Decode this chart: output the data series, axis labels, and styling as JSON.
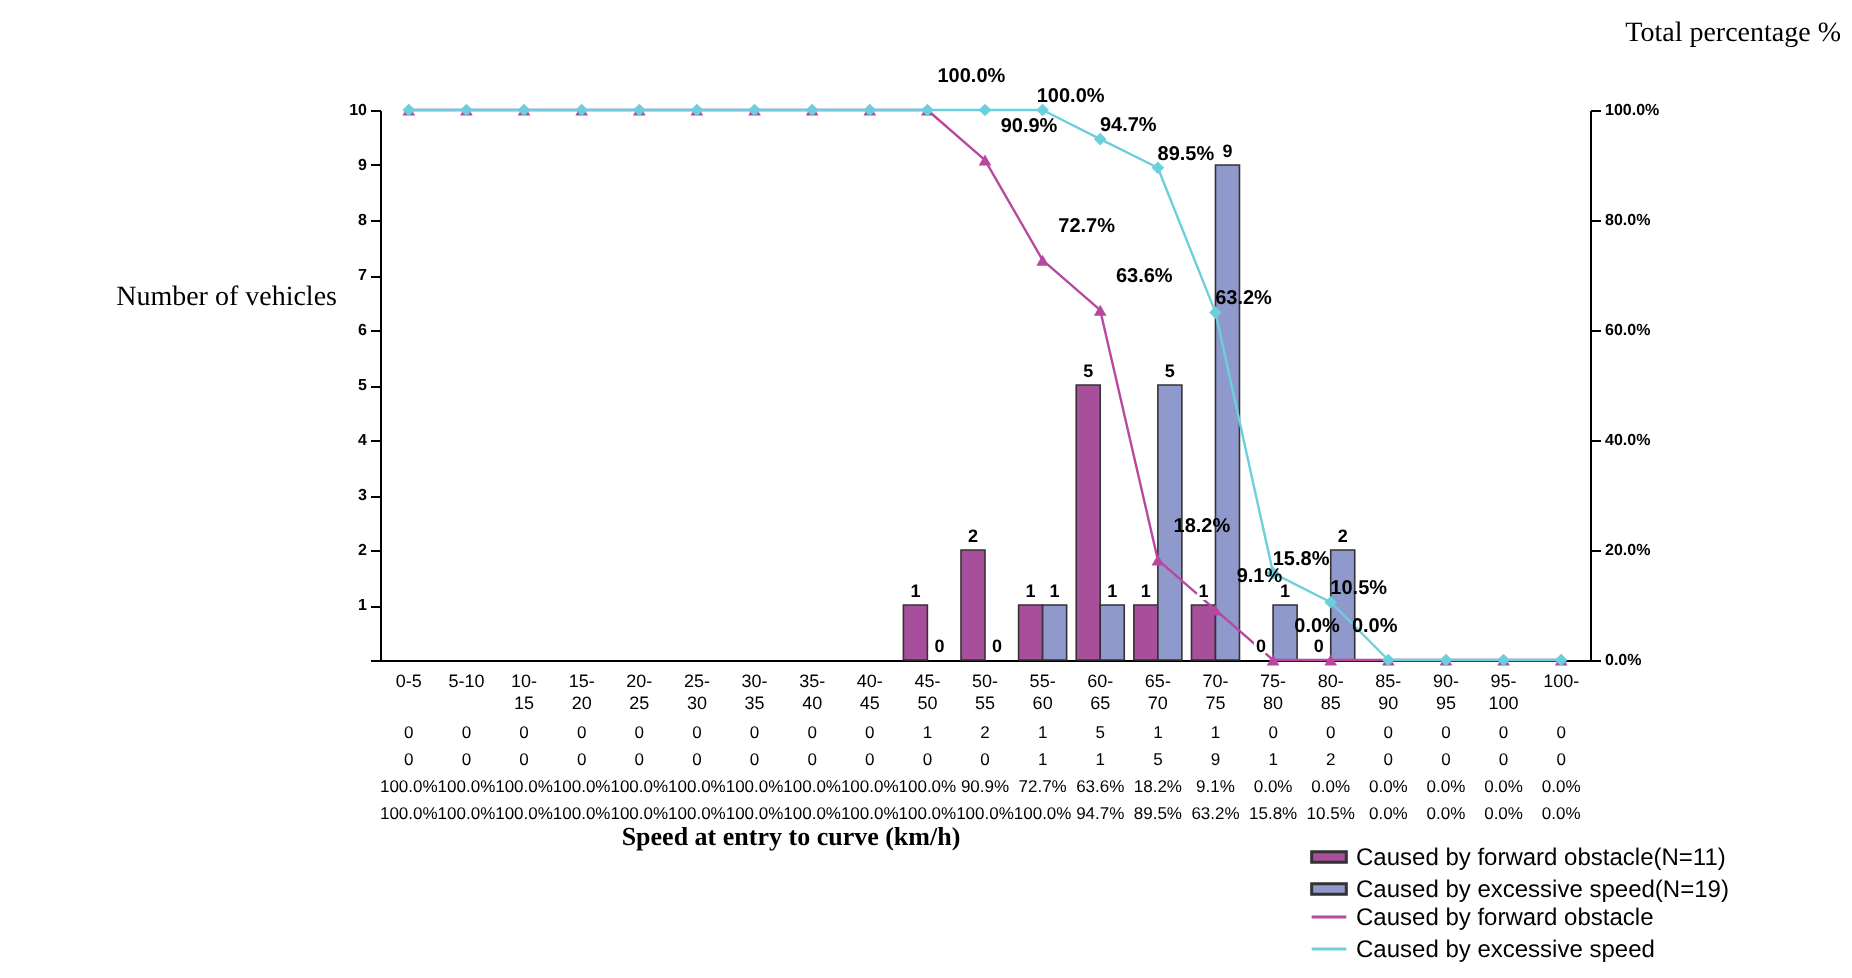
{
  "chart_data": {
    "type": "bar",
    "categories": [
      "0-5",
      "5-10",
      "10-15",
      "15-20",
      "20-25",
      "25-30",
      "30-35",
      "35-40",
      "40-45",
      "45-50",
      "50-55",
      "55-60",
      "60-65",
      "65-70",
      "70-75",
      "75-80",
      "80-85",
      "85-90",
      "90-95",
      "95-100",
      "100-"
    ],
    "series": [
      {
        "name": "Caused by forward obstacle(N=11)",
        "color": "#a84f9c",
        "values": [
          0,
          0,
          0,
          0,
          0,
          0,
          0,
          0,
          0,
          1,
          2,
          1,
          5,
          1,
          1,
          0,
          0,
          0,
          0,
          0,
          0
        ],
        "value_labels": [
          "0",
          "0",
          "0",
          "0",
          "0",
          "0",
          "0",
          "0",
          "0",
          "1",
          "2",
          "1",
          "5",
          "1",
          "1",
          "0",
          "0",
          "0",
          "0",
          "0",
          "0"
        ]
      },
      {
        "name": "Caused by excessive speed(N=19)",
        "color": "#9099cc",
        "values": [
          0,
          0,
          0,
          0,
          0,
          0,
          0,
          0,
          0,
          0,
          0,
          1,
          1,
          5,
          9,
          1,
          2,
          0,
          0,
          0,
          0
        ],
        "value_labels": [
          "0",
          "0",
          "0",
          "0",
          "0",
          "0",
          "0",
          "0",
          "0",
          "0",
          "0",
          "1",
          "1",
          "5",
          "9",
          "1",
          "2",
          "0",
          "0",
          "0",
          "0"
        ]
      },
      {
        "name": "Caused by forward obstacle",
        "type": "line",
        "axis": "y2",
        "marker": "triangle",
        "color": "#b8489e",
        "values": [
          100,
          100,
          100,
          100,
          100,
          100,
          100,
          100,
          100,
          100,
          90.9,
          72.7,
          63.6,
          18.2,
          9.1,
          0,
          0,
          0,
          0,
          0,
          0
        ],
        "value_labels": [
          "100.0%",
          "100.0%",
          "100.0%",
          "100.0%",
          "100.0%",
          "100.0%",
          "100.0%",
          "100.0%",
          "100.0%",
          "100.0%",
          "90.9%",
          "72.7%",
          "63.6%",
          "18.2%",
          "9.1%",
          "0.0%",
          "0.0%",
          "0.0%",
          "0.0%",
          "0.0%",
          "0.0%"
        ]
      },
      {
        "name": "Caused by excessive speed",
        "type": "line",
        "axis": "y2",
        "marker": "diamond",
        "color": "#6ccfdc",
        "values": [
          100,
          100,
          100,
          100,
          100,
          100,
          100,
          100,
          100,
          100,
          100,
          100,
          94.7,
          89.5,
          63.2,
          15.8,
          10.5,
          0,
          0,
          0,
          0
        ],
        "value_labels": [
          "100.0%",
          "100.0%",
          "100.0%",
          "100.0%",
          "100.0%",
          "100.0%",
          "100.0%",
          "100.0%",
          "100.0%",
          "100.0%",
          "100.0%",
          "100.0%",
          "94.7%",
          "89.5%",
          "63.2%",
          "15.8%",
          "10.5%",
          "0.0%",
          "0.0%",
          "0.0%",
          "0.0%"
        ]
      }
    ],
    "ylabel": "Number of vehicles",
    "y2label": "Total percentage %",
    "xlabel": "Speed at entry to curve (km/h)",
    "ylim": [
      0,
      10
    ],
    "yticks": [
      {
        "value": 0,
        "label": null
      },
      1,
      2,
      3,
      4,
      5,
      6,
      7,
      8,
      9,
      10
    ],
    "y2lim": [
      0,
      100
    ],
    "y2ticks": [
      {
        "value": 0,
        "label": "0.0%"
      },
      {
        "value": 20,
        "label": "20.0%"
      },
      {
        "value": 40,
        "label": "40.0%"
      },
      {
        "value": 60,
        "label": "60.0%"
      },
      {
        "value": 80,
        "label": "80.0%"
      },
      {
        "value": 100,
        "label": "100.0%"
      }
    ],
    "data_labels": true,
    "grid": false,
    "legend": "bottom right"
  }
}
